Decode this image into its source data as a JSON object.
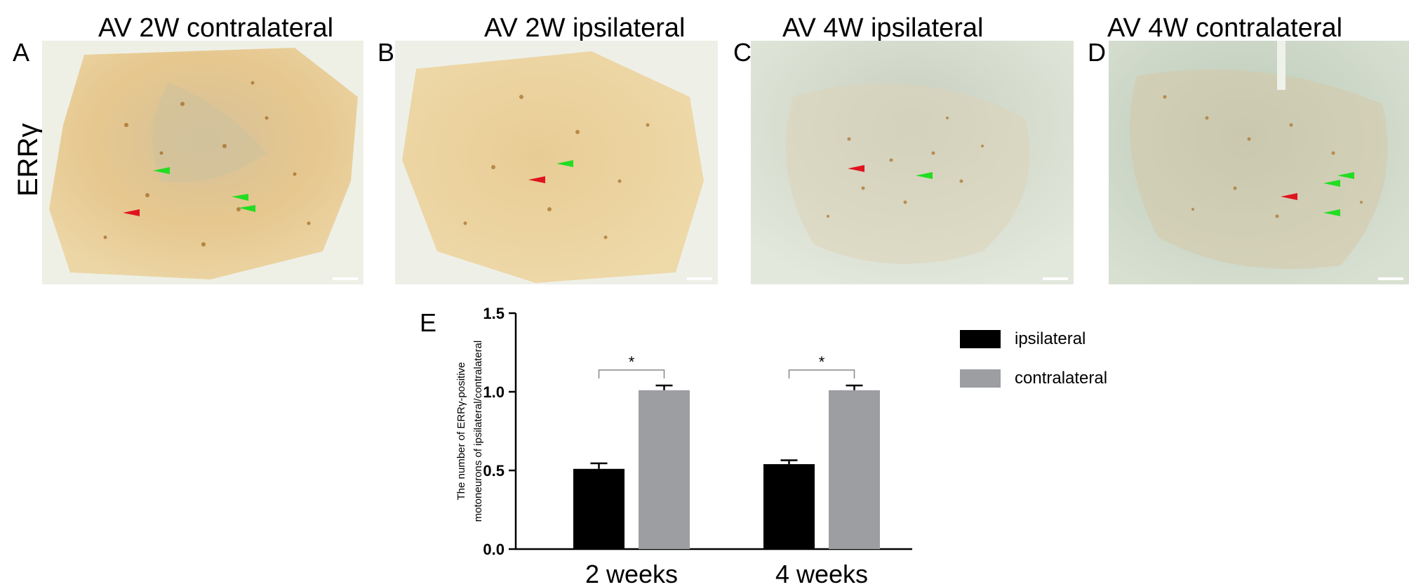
{
  "panels": [
    {
      "letter": "A",
      "title": "AV 2W contralateral",
      "scale": "100 μm"
    },
    {
      "letter": "B",
      "title": "AV 2W ipsilateral",
      "scale": "100 μm"
    },
    {
      "letter": "C",
      "title": "AV 4W ipsilateral",
      "scale": "100 μm"
    },
    {
      "letter": "D",
      "title": "AV 4W contralateral",
      "scale": "100 μm"
    }
  ],
  "row_label": "ERRγ",
  "chart_letter": "E",
  "colors": {
    "ipsilateral": "#000000",
    "contralateral": "#9d9ea2",
    "arrow_red": "#e0141e",
    "arrow_green": "#22dd22",
    "stain_dark": "#e3c692",
    "stain_light": "#e9edde",
    "tissue_teal": "#c8d4c4"
  },
  "chart_data": {
    "type": "bar",
    "categories": [
      "2 weeks",
      "4 weeks"
    ],
    "series": [
      {
        "name": "ipsilateral",
        "values": [
          0.51,
          0.54
        ],
        "errors": [
          0.035,
          0.025
        ]
      },
      {
        "name": "contralateral",
        "values": [
          1.01,
          1.01
        ],
        "errors": [
          0.03,
          0.03
        ]
      }
    ],
    "ylabel_line1": "The number of ERRγ-positive",
    "ylabel_line2": "motoneurons of ipsilateral/contralateral",
    "xlabel": "",
    "ylim": [
      0,
      1.5
    ],
    "yticks": [
      0.0,
      0.5,
      1.0,
      1.5
    ],
    "ytick_labels": [
      "0.0",
      "0.5",
      "1.0",
      "1.5"
    ],
    "significance": [
      "*",
      "*"
    ],
    "legend_position": "right",
    "grid": false
  }
}
